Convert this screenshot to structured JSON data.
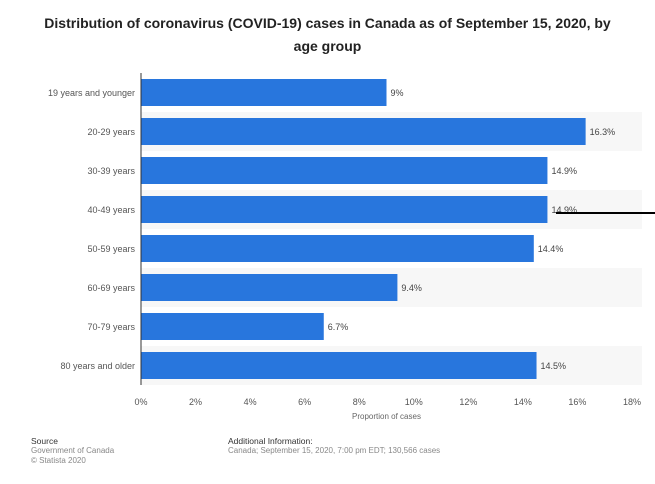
{
  "chart_data": {
    "type": "bar",
    "orientation": "horizontal",
    "title": "Distribution of coronavirus (COVID-19) cases in Canada as of September 15, 2020, by age group",
    "categories": [
      "19 years and younger",
      "20-29 years",
      "30-39 years",
      "40-49 years",
      "50-59 years",
      "60-69 years",
      "70-79 years",
      "80 years and older"
    ],
    "values": [
      9,
      16.3,
      14.9,
      14.9,
      14.4,
      9.4,
      6.7,
      14.5
    ],
    "value_labels": [
      "9%",
      "16.3%",
      "14.9%",
      "14.9%",
      "14.4%",
      "9.4%",
      "6.7%",
      "14.5%"
    ],
    "xlabel": "Proportion of cases",
    "ylabel": "",
    "xlim": [
      0,
      18
    ],
    "xticks": [
      "0%",
      "2%",
      "4%",
      "6%",
      "8%",
      "10%",
      "12%",
      "14%",
      "16%",
      "18%"
    ],
    "bar_color": "#2876dd",
    "grid": false
  },
  "footer": {
    "source_heading": "Source",
    "source_line1": "Government of Canada",
    "source_line2": "© Statista 2020",
    "info_heading": "Additional Information:",
    "info_text": "Canada; September 15, 2020, 7:00 pm EDT; 130,566 cases"
  }
}
